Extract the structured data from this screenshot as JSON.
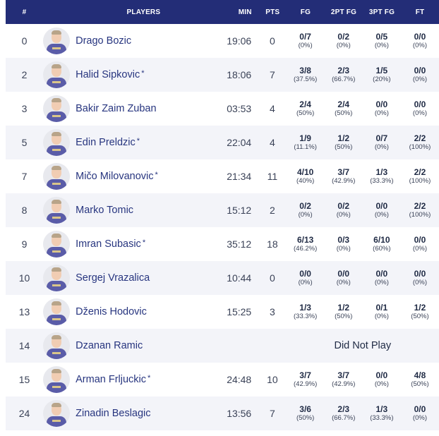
{
  "headers": {
    "num": "#",
    "players": "PLAYERS",
    "min": "MIN",
    "pts": "PTS",
    "fg": "FG",
    "fg2": "2PT FG",
    "fg3": "3PT FG",
    "ft": "FT"
  },
  "rows": [
    {
      "num": "0",
      "name": "Drago Bozic",
      "star": "",
      "min": "19:06",
      "pts": "0",
      "fg": "0/7",
      "fg_pct": "(0%)",
      "fg2": "0/2",
      "fg2_pct": "(0%)",
      "fg3": "0/5",
      "fg3_pct": "(0%)",
      "ft": "0/0",
      "ft_pct": "(0%)",
      "dnp": ""
    },
    {
      "num": "2",
      "name": "Halid Sipkovic",
      "star": "*",
      "min": "18:06",
      "pts": "7",
      "fg": "3/8",
      "fg_pct": "(37.5%)",
      "fg2": "2/3",
      "fg2_pct": "(66.7%)",
      "fg3": "1/5",
      "fg3_pct": "(20%)",
      "ft": "0/0",
      "ft_pct": "(0%)",
      "dnp": ""
    },
    {
      "num": "3",
      "name": "Bakir Zaim Zuban",
      "star": "",
      "min": "03:53",
      "pts": "4",
      "fg": "2/4",
      "fg_pct": "(50%)",
      "fg2": "2/4",
      "fg2_pct": "(50%)",
      "fg3": "0/0",
      "fg3_pct": "(0%)",
      "ft": "0/0",
      "ft_pct": "(0%)",
      "dnp": ""
    },
    {
      "num": "5",
      "name": "Edin Preldzic",
      "star": "*",
      "min": "22:04",
      "pts": "4",
      "fg": "1/9",
      "fg_pct": "(11.1%)",
      "fg2": "1/2",
      "fg2_pct": "(50%)",
      "fg3": "0/7",
      "fg3_pct": "(0%)",
      "ft": "2/2",
      "ft_pct": "(100%)",
      "dnp": ""
    },
    {
      "num": "7",
      "name": "Mičo Milovanovic",
      "star": "*",
      "min": "21:34",
      "pts": "11",
      "fg": "4/10",
      "fg_pct": "(40%)",
      "fg2": "3/7",
      "fg2_pct": "(42.9%)",
      "fg3": "1/3",
      "fg3_pct": "(33.3%)",
      "ft": "2/2",
      "ft_pct": "(100%)",
      "dnp": ""
    },
    {
      "num": "8",
      "name": "Marko Tomic",
      "star": "",
      "min": "15:12",
      "pts": "2",
      "fg": "0/2",
      "fg_pct": "(0%)",
      "fg2": "0/2",
      "fg2_pct": "(0%)",
      "fg3": "0/0",
      "fg3_pct": "(0%)",
      "ft": "2/2",
      "ft_pct": "(100%)",
      "dnp": ""
    },
    {
      "num": "9",
      "name": "Imran Subasic",
      "star": "*",
      "min": "35:12",
      "pts": "18",
      "fg": "6/13",
      "fg_pct": "(46.2%)",
      "fg2": "0/3",
      "fg2_pct": "(0%)",
      "fg3": "6/10",
      "fg3_pct": "(60%)",
      "ft": "0/0",
      "ft_pct": "(0%)",
      "dnp": ""
    },
    {
      "num": "10",
      "name": "Sergej Vrazalica",
      "star": "",
      "min": "10:44",
      "pts": "0",
      "fg": "0/0",
      "fg_pct": "(0%)",
      "fg2": "0/0",
      "fg2_pct": "(0%)",
      "fg3": "0/0",
      "fg3_pct": "(0%)",
      "ft": "0/0",
      "ft_pct": "(0%)",
      "dnp": ""
    },
    {
      "num": "13",
      "name": "Dženis Hodovic",
      "star": "",
      "min": "15:25",
      "pts": "3",
      "fg": "1/3",
      "fg_pct": "(33.3%)",
      "fg2": "1/2",
      "fg2_pct": "(50%)",
      "fg3": "0/1",
      "fg3_pct": "(0%)",
      "ft": "1/2",
      "ft_pct": "(50%)",
      "dnp": ""
    },
    {
      "num": "14",
      "name": "Dzanan Ramic",
      "star": "",
      "min": "",
      "pts": "",
      "fg": "",
      "fg_pct": "",
      "fg2": "",
      "fg2_pct": "",
      "fg3": "",
      "fg3_pct": "",
      "ft": "",
      "ft_pct": "",
      "dnp": "Did Not Play"
    },
    {
      "num": "15",
      "name": "Arman Frljuckic",
      "star": "*",
      "min": "24:48",
      "pts": "10",
      "fg": "3/7",
      "fg_pct": "(42.9%)",
      "fg2": "3/7",
      "fg2_pct": "(42.9%)",
      "fg3": "0/0",
      "fg3_pct": "(0%)",
      "ft": "4/8",
      "ft_pct": "(50%)",
      "dnp": ""
    },
    {
      "num": "24",
      "name": "Zinadin Beslagic",
      "star": "",
      "min": "13:56",
      "pts": "7",
      "fg": "3/6",
      "fg_pct": "(50%)",
      "fg2": "2/3",
      "fg2_pct": "(66.7%)",
      "fg3": "1/3",
      "fg3_pct": "(33.3%)",
      "ft": "0/0",
      "ft_pct": "(0%)",
      "dnp": ""
    }
  ],
  "colors": {
    "header_bg": "#232d77",
    "player_link": "#27357f",
    "alt_row": "#f3f4f9"
  },
  "icons": {
    "avatar": "player-headshot-icon"
  }
}
